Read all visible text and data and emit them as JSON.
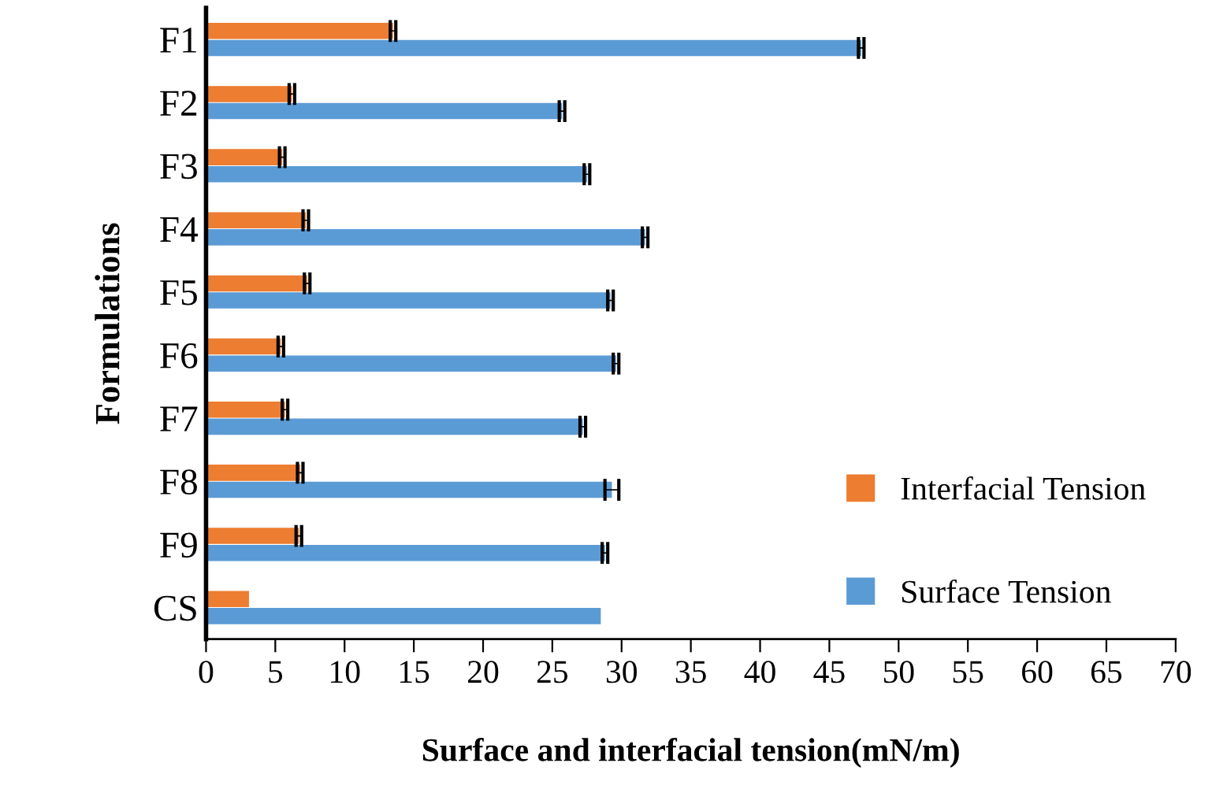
{
  "chart_data": {
    "type": "bar",
    "orientation": "horizontal",
    "xlabel": "Surface and interfacial tension(mN/m)",
    "ylabel": "Formulations",
    "categories": [
      "F1",
      "F2",
      "F3",
      "F4",
      "F5",
      "F6",
      "F7",
      "F8",
      "F9",
      "CS"
    ],
    "series": [
      {
        "name": "Interfacial Tension",
        "color": "#ed7d31",
        "values": [
          13.5,
          6.2,
          5.5,
          7.2,
          7.3,
          5.4,
          5.7,
          6.8,
          6.7,
          3.1
        ],
        "errors": [
          0.2,
          0.2,
          0.2,
          0.2,
          0.2,
          0.2,
          0.2,
          0.2,
          0.2,
          null
        ]
      },
      {
        "name": "Surface Tension",
        "color": "#5b9bd5",
        "values": [
          47.3,
          25.7,
          27.5,
          31.7,
          29.2,
          29.6,
          27.2,
          29.3,
          28.8,
          28.5
        ],
        "errors": [
          0.2,
          0.2,
          0.2,
          0.2,
          0.2,
          0.2,
          0.2,
          0.5,
          0.2,
          null
        ]
      }
    ],
    "xlim": [
      0,
      70
    ],
    "xticks": [
      0,
      5,
      10,
      15,
      20,
      25,
      30,
      35,
      40,
      45,
      50,
      55,
      60,
      65,
      70
    ],
    "grid": false,
    "legend": "bottom right"
  }
}
